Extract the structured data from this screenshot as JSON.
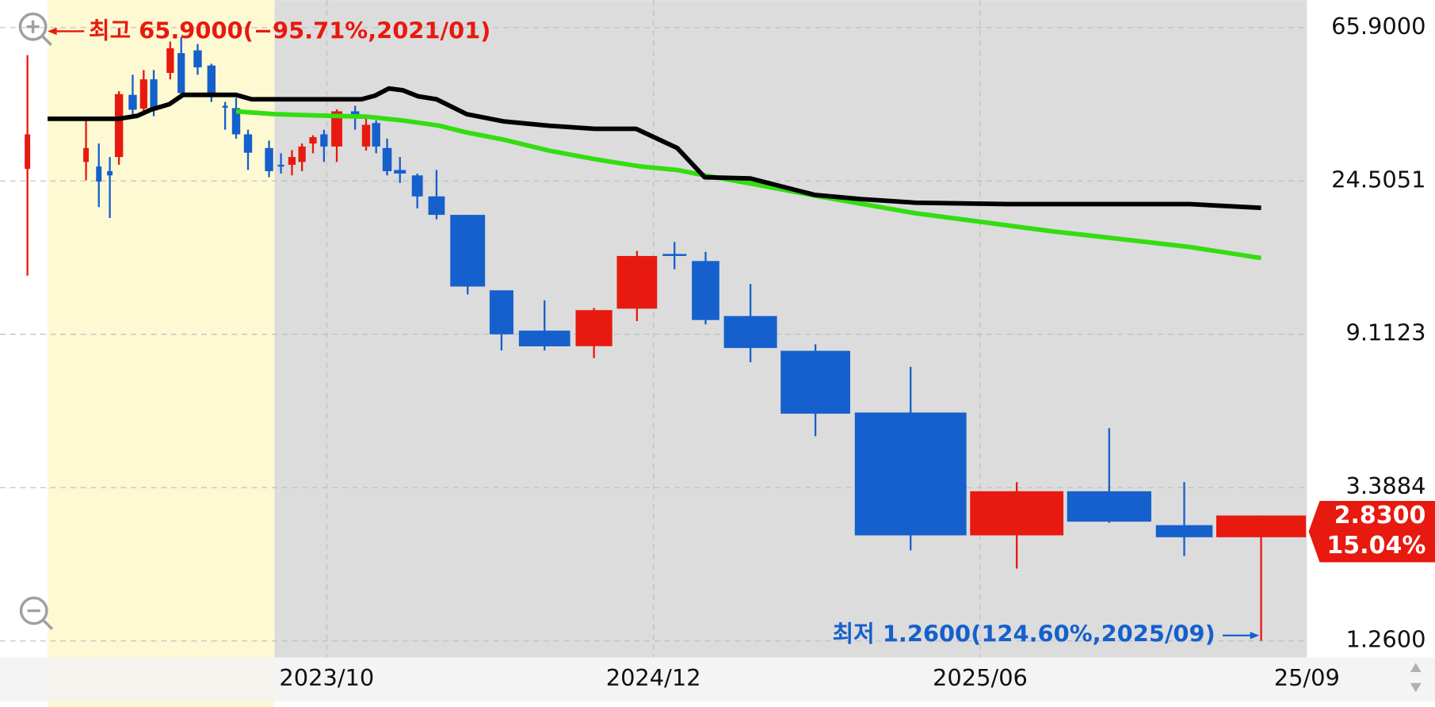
{
  "chart_data": {
    "type": "candlestick",
    "log_scale": true,
    "grid": true,
    "up_color": "#e8190f",
    "down_color": "#1560cc",
    "ylim": [
      1.26,
      65.9
    ],
    "yticks": [
      {
        "value": 65.9,
        "label": "65.9000"
      },
      24.5051,
      9.1123,
      3.3884,
      {
        "value": 1.26,
        "label": "1.2600"
      }
    ],
    "x_tick_labels": [
      "2023/10",
      "2024/12",
      "2025/06",
      "25/09"
    ],
    "candles": {
      "open": [
        26.5,
        27.7,
        26.9,
        26.1,
        28.6,
        42.7,
        39.1,
        47.2,
        49.2,
        55.9,
        56.9,
        51.6,
        39.8,
        39.2,
        33.1,
        30.3,
        27.2,
        27.2,
        27.7,
        31.2,
        33.1,
        30.6,
        38.4,
        30.6,
        35.6,
        30.3,
        26.3,
        25.4,
        22.18,
        19.69,
        12.1,
        9.33,
        8.44,
        10.75,
        15.3,
        14.62,
        10.25,
        8.19,
        5.5,
        2.49,
        3.31,
        2.66,
        2.46
      ],
      "high": [
        55.2,
        36.2,
        31.2,
        28.6,
        43.7,
        48.6,
        50.1,
        50.1,
        60.2,
        62.0,
        59.3,
        52.2,
        40.8,
        41.9,
        34.1,
        31.8,
        29.3,
        29.9,
        31.2,
        32.9,
        34.1,
        38.9,
        39.8,
        36.6,
        36.2,
        32.2,
        28.6,
        25.7,
        26.3,
        19.69,
        12.1,
        11.34,
        10.8,
        15.6,
        16.54,
        15.51,
        12.61,
        8.54,
        7.39,
        3.51,
        4.97,
        3.51,
        2.83
      ],
      "low": [
        13.3,
        24.6,
        20.7,
        19.3,
        27.2,
        37.2,
        37.8,
        37.2,
        47.2,
        41.9,
        48.6,
        40.8,
        34.1,
        32.2,
        26.3,
        25.1,
        25.7,
        25.4,
        26.1,
        29.3,
        27.7,
        27.7,
        34.1,
        29.8,
        29.3,
        25.4,
        24.2,
        20.53,
        19.13,
        11.78,
        8.21,
        8.21,
        7.81,
        9.92,
        13.86,
        9.72,
        7.61,
        4.72,
        2.26,
        2.01,
        2.7,
        2.18,
        1.26
      ],
      "close": [
        33.1,
        30.3,
        24.4,
        25.4,
        42.9,
        38.8,
        47.2,
        39.1,
        57.7,
        43.2,
        51.0,
        42.7,
        39.3,
        33.1,
        29.4,
        26.1,
        26.9,
        28.6,
        30.6,
        32.5,
        30.6,
        38.4,
        37.2,
        35.2,
        30.6,
        26.1,
        25.7,
        22.18,
        19.69,
        12.4,
        9.11,
        8.43,
        10.65,
        15.1,
        15.1,
        9.99,
        8.34,
        5.46,
        2.49,
        3.31,
        2.72,
        2.46,
        2.83
      ]
    },
    "ma_lines": [
      {
        "color": "#000000",
        "values": [
          36.6,
          36.6,
          37.3,
          38.8,
          40.2,
          42.7,
          42.7,
          41.5,
          41.5,
          42.5,
          44.5,
          44.0,
          42.3,
          41.5,
          37.7,
          36.0,
          35.0,
          34.3,
          34.3,
          30.3,
          25.1,
          24.9,
          23.8,
          22.4,
          21.8,
          21.3,
          21.1,
          21.1,
          20.6
        ]
      },
      {
        "color": "#33dd11",
        "values": [
          38.4,
          37.7,
          37.3,
          37.1,
          36.2,
          35.0,
          33.5,
          32.0,
          29.8,
          28.2,
          26.9,
          26.3,
          25.4,
          24.1,
          22.3,
          19.9,
          18.7,
          17.7,
          16.9,
          16.0,
          14.9
        ]
      }
    ],
    "high_annotation": "최고 65.9000(−95.71%,2021/01)",
    "low_annotation": "최저 1.2600(124.60%,2025/09)",
    "last_price": {
      "value": 2.83,
      "label": "2.8300"
    },
    "last_change": {
      "value": 15.04,
      "label": "15.04%"
    }
  }
}
